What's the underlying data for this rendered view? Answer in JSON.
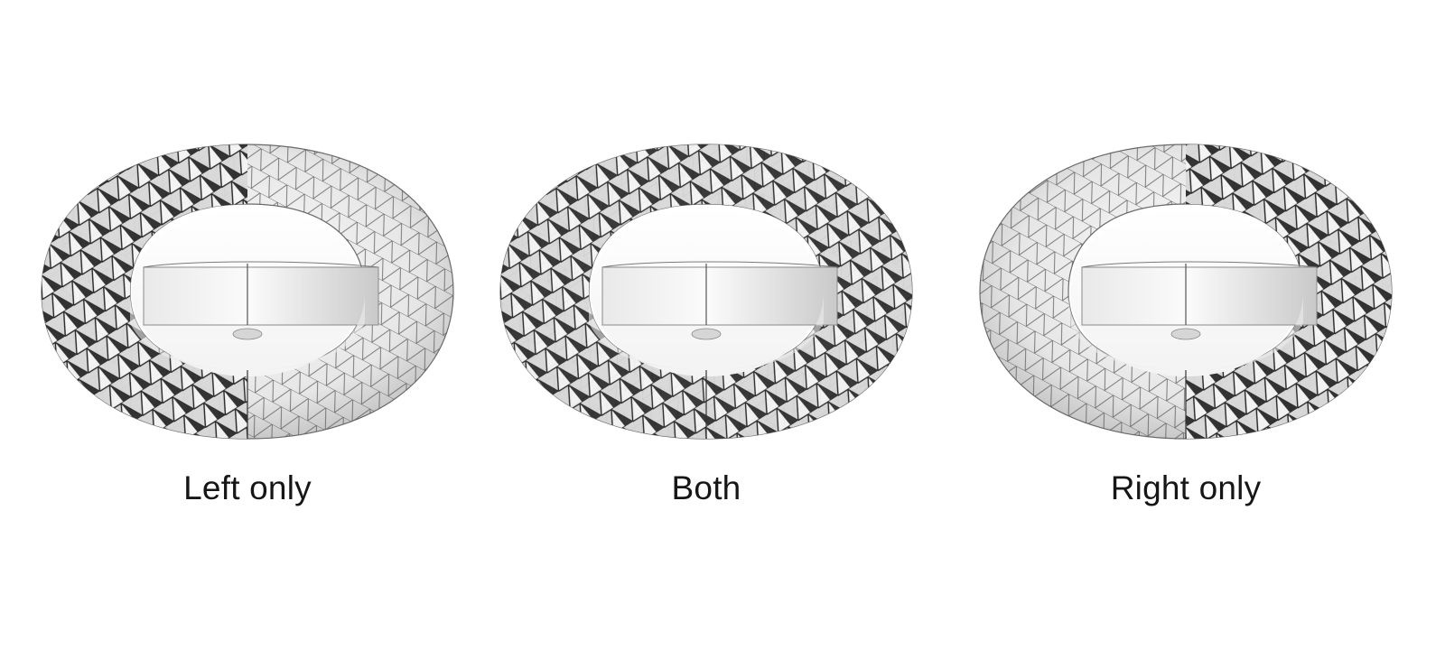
{
  "panels": [
    {
      "id": "left",
      "caption": "Left only",
      "highlight": "left"
    },
    {
      "id": "both",
      "caption": "Both",
      "highlight": "both"
    },
    {
      "id": "right",
      "caption": "Right only",
      "highlight": "right"
    }
  ],
  "colors": {
    "background": "#ffffff",
    "surface_light": "#f2f2f2",
    "surface_mid": "#cfcfcf",
    "mesh_line": "#444444",
    "spike_dark": "#1c1c1c",
    "caption_text": "#161616"
  }
}
